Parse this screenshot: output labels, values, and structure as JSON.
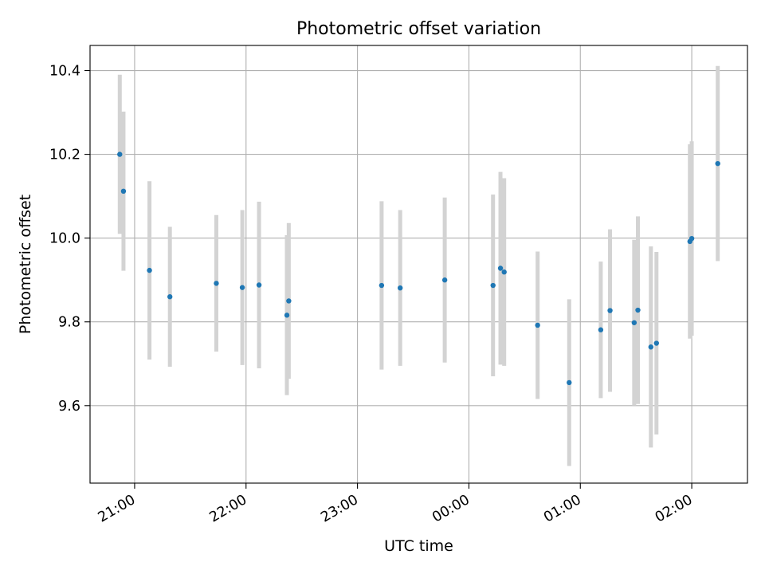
{
  "chart_data": {
    "type": "scatter",
    "title": "Photometric offset variation",
    "xlabel": "UTC time",
    "ylabel": "Photometric offset",
    "grid": true,
    "x_tick_labels": [
      "21:00",
      "22:00",
      "23:00",
      "00:00",
      "01:00",
      "02:00"
    ],
    "x_tick_times_hours": [
      21,
      22,
      23,
      24,
      25,
      26
    ],
    "y_ticks": [
      9.6,
      9.8,
      10.0,
      10.2,
      10.4
    ],
    "y_tick_labels": [
      "9.6",
      "9.8",
      "10.0",
      "10.2",
      "10.4"
    ],
    "xlim_hours": [
      20.6,
      26.5
    ],
    "ylim": [
      9.415,
      10.46
    ],
    "marker_color": "#1f77b4",
    "errorbar_color": "#d3d3d3",
    "points": [
      {
        "time": "20:52",
        "y": 10.2,
        "err": 0.19
      },
      {
        "time": "20:54",
        "y": 10.112,
        "err": 0.19
      },
      {
        "time": "21:08",
        "y": 9.923,
        "err": 0.213
      },
      {
        "time": "21:19",
        "y": 9.86,
        "err": 0.167
      },
      {
        "time": "21:44",
        "y": 9.892,
        "err": 0.163
      },
      {
        "time": "21:58",
        "y": 9.882,
        "err": 0.185
      },
      {
        "time": "22:07",
        "y": 9.888,
        "err": 0.199
      },
      {
        "time": "22:22",
        "y": 9.816,
        "err": 0.191
      },
      {
        "time": "22:23",
        "y": 9.85,
        "err": 0.186
      },
      {
        "time": "23:13",
        "y": 9.887,
        "err": 0.201
      },
      {
        "time": "23:23",
        "y": 9.881,
        "err": 0.186
      },
      {
        "time": "23:47",
        "y": 9.9,
        "err": 0.197
      },
      {
        "time": "00:13",
        "y": 9.887,
        "err": 0.217
      },
      {
        "time": "00:17",
        "y": 9.928,
        "err": 0.23
      },
      {
        "time": "00:19",
        "y": 9.919,
        "err": 0.224
      },
      {
        "time": "00:37",
        "y": 9.792,
        "err": 0.176
      },
      {
        "time": "00:54",
        "y": 9.655,
        "err": 0.199
      },
      {
        "time": "01:11",
        "y": 9.781,
        "err": 0.163
      },
      {
        "time": "01:16",
        "y": 9.827,
        "err": 0.194
      },
      {
        "time": "01:29",
        "y": 9.798,
        "err": 0.198
      },
      {
        "time": "01:31",
        "y": 9.828,
        "err": 0.224
      },
      {
        "time": "01:38",
        "y": 9.74,
        "err": 0.24
      },
      {
        "time": "01:41",
        "y": 9.749,
        "err": 0.218
      },
      {
        "time": "01:59",
        "y": 9.992,
        "err": 0.232
      },
      {
        "time": "02:00",
        "y": 9.999,
        "err": 0.232
      },
      {
        "time": "02:14",
        "y": 10.178,
        "err": 0.233
      }
    ]
  }
}
